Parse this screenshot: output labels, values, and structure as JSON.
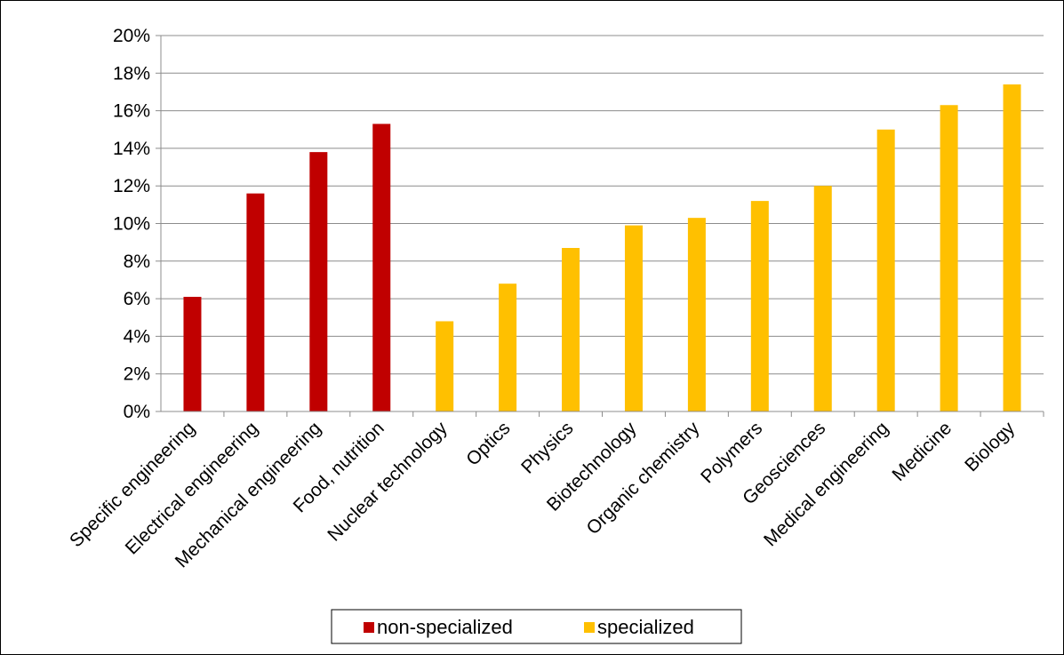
{
  "chart_data": {
    "type": "bar",
    "categories": [
      "Specific engineering",
      "Electrical engineering",
      "Mechanical engineering",
      "Food, nutrition",
      "Nuclear technology",
      "Optics",
      "Physics",
      "Biotechnology",
      "Organic chemistry",
      "Polymers",
      "Geosciences",
      "Medical engineering",
      "Medicine",
      "Biology"
    ],
    "values": [
      6.1,
      11.6,
      13.8,
      15.3,
      4.8,
      6.8,
      8.7,
      9.9,
      10.3,
      11.2,
      12.0,
      15.0,
      16.3,
      17.4
    ],
    "groups": [
      "non-specialized",
      "non-specialized",
      "non-specialized",
      "non-specialized",
      "specialized",
      "specialized",
      "specialized",
      "specialized",
      "specialized",
      "specialized",
      "specialized",
      "specialized",
      "specialized",
      "specialized"
    ],
    "series": [
      {
        "name": "non-specialized",
        "color": "#C00000"
      },
      {
        "name": "specialized",
        "color": "#FFC000"
      }
    ],
    "ylim": [
      0,
      20
    ],
    "ytick_values": [
      0,
      2,
      4,
      6,
      8,
      10,
      12,
      14,
      16,
      18,
      20
    ],
    "ytick_labels": [
      "0%",
      "2%",
      "4%",
      "6%",
      "8%",
      "10%",
      "12%",
      "14%",
      "16%",
      "18%",
      "20%"
    ],
    "grid": true,
    "legend_position": "bottom"
  }
}
